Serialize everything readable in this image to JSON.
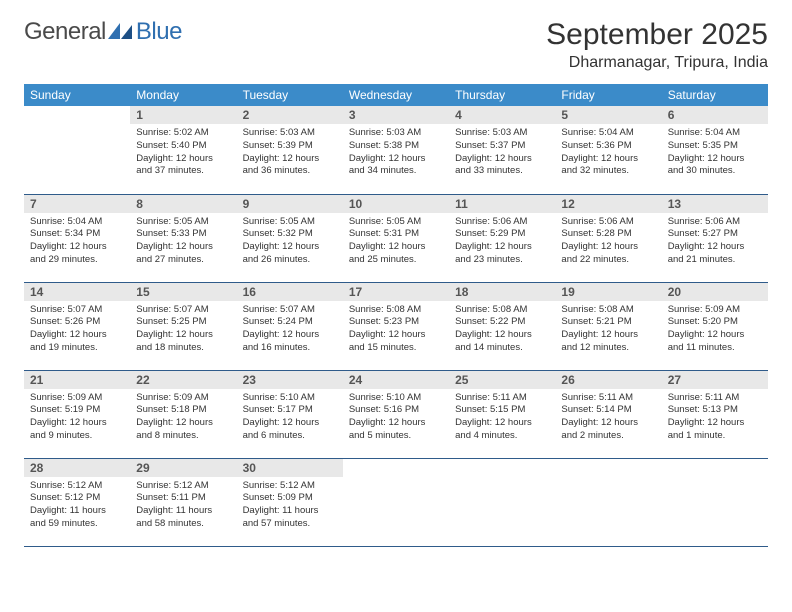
{
  "logo": {
    "text_left": "General",
    "text_right": "Blue"
  },
  "title": "September 2025",
  "location": "Dharmanagar, Tripura, India",
  "colors": {
    "header_bg": "#3b8bc9",
    "header_fg": "#ffffff",
    "daynum_bg": "#e8e8e8",
    "daynum_fg": "#555555",
    "row_border": "#2f5b8a",
    "logo_accent": "#2f6fb0"
  },
  "weekdays": [
    "Sunday",
    "Monday",
    "Tuesday",
    "Wednesday",
    "Thursday",
    "Friday",
    "Saturday"
  ],
  "weeks": [
    [
      null,
      {
        "n": "1",
        "sr": "5:02 AM",
        "ss": "5:40 PM",
        "dl": "12 hours and 37 minutes."
      },
      {
        "n": "2",
        "sr": "5:03 AM",
        "ss": "5:39 PM",
        "dl": "12 hours and 36 minutes."
      },
      {
        "n": "3",
        "sr": "5:03 AM",
        "ss": "5:38 PM",
        "dl": "12 hours and 34 minutes."
      },
      {
        "n": "4",
        "sr": "5:03 AM",
        "ss": "5:37 PM",
        "dl": "12 hours and 33 minutes."
      },
      {
        "n": "5",
        "sr": "5:04 AM",
        "ss": "5:36 PM",
        "dl": "12 hours and 32 minutes."
      },
      {
        "n": "6",
        "sr": "5:04 AM",
        "ss": "5:35 PM",
        "dl": "12 hours and 30 minutes."
      }
    ],
    [
      {
        "n": "7",
        "sr": "5:04 AM",
        "ss": "5:34 PM",
        "dl": "12 hours and 29 minutes."
      },
      {
        "n": "8",
        "sr": "5:05 AM",
        "ss": "5:33 PM",
        "dl": "12 hours and 27 minutes."
      },
      {
        "n": "9",
        "sr": "5:05 AM",
        "ss": "5:32 PM",
        "dl": "12 hours and 26 minutes."
      },
      {
        "n": "10",
        "sr": "5:05 AM",
        "ss": "5:31 PM",
        "dl": "12 hours and 25 minutes."
      },
      {
        "n": "11",
        "sr": "5:06 AM",
        "ss": "5:29 PM",
        "dl": "12 hours and 23 minutes."
      },
      {
        "n": "12",
        "sr": "5:06 AM",
        "ss": "5:28 PM",
        "dl": "12 hours and 22 minutes."
      },
      {
        "n": "13",
        "sr": "5:06 AM",
        "ss": "5:27 PM",
        "dl": "12 hours and 21 minutes."
      }
    ],
    [
      {
        "n": "14",
        "sr": "5:07 AM",
        "ss": "5:26 PM",
        "dl": "12 hours and 19 minutes."
      },
      {
        "n": "15",
        "sr": "5:07 AM",
        "ss": "5:25 PM",
        "dl": "12 hours and 18 minutes."
      },
      {
        "n": "16",
        "sr": "5:07 AM",
        "ss": "5:24 PM",
        "dl": "12 hours and 16 minutes."
      },
      {
        "n": "17",
        "sr": "5:08 AM",
        "ss": "5:23 PM",
        "dl": "12 hours and 15 minutes."
      },
      {
        "n": "18",
        "sr": "5:08 AM",
        "ss": "5:22 PM",
        "dl": "12 hours and 14 minutes."
      },
      {
        "n": "19",
        "sr": "5:08 AM",
        "ss": "5:21 PM",
        "dl": "12 hours and 12 minutes."
      },
      {
        "n": "20",
        "sr": "5:09 AM",
        "ss": "5:20 PM",
        "dl": "12 hours and 11 minutes."
      }
    ],
    [
      {
        "n": "21",
        "sr": "5:09 AM",
        "ss": "5:19 PM",
        "dl": "12 hours and 9 minutes."
      },
      {
        "n": "22",
        "sr": "5:09 AM",
        "ss": "5:18 PM",
        "dl": "12 hours and 8 minutes."
      },
      {
        "n": "23",
        "sr": "5:10 AM",
        "ss": "5:17 PM",
        "dl": "12 hours and 6 minutes."
      },
      {
        "n": "24",
        "sr": "5:10 AM",
        "ss": "5:16 PM",
        "dl": "12 hours and 5 minutes."
      },
      {
        "n": "25",
        "sr": "5:11 AM",
        "ss": "5:15 PM",
        "dl": "12 hours and 4 minutes."
      },
      {
        "n": "26",
        "sr": "5:11 AM",
        "ss": "5:14 PM",
        "dl": "12 hours and 2 minutes."
      },
      {
        "n": "27",
        "sr": "5:11 AM",
        "ss": "5:13 PM",
        "dl": "12 hours and 1 minute."
      }
    ],
    [
      {
        "n": "28",
        "sr": "5:12 AM",
        "ss": "5:12 PM",
        "dl": "11 hours and 59 minutes."
      },
      {
        "n": "29",
        "sr": "5:12 AM",
        "ss": "5:11 PM",
        "dl": "11 hours and 58 minutes."
      },
      {
        "n": "30",
        "sr": "5:12 AM",
        "ss": "5:09 PM",
        "dl": "11 hours and 57 minutes."
      },
      null,
      null,
      null,
      null
    ]
  ],
  "labels": {
    "sunrise": "Sunrise:",
    "sunset": "Sunset:",
    "daylight": "Daylight:"
  }
}
